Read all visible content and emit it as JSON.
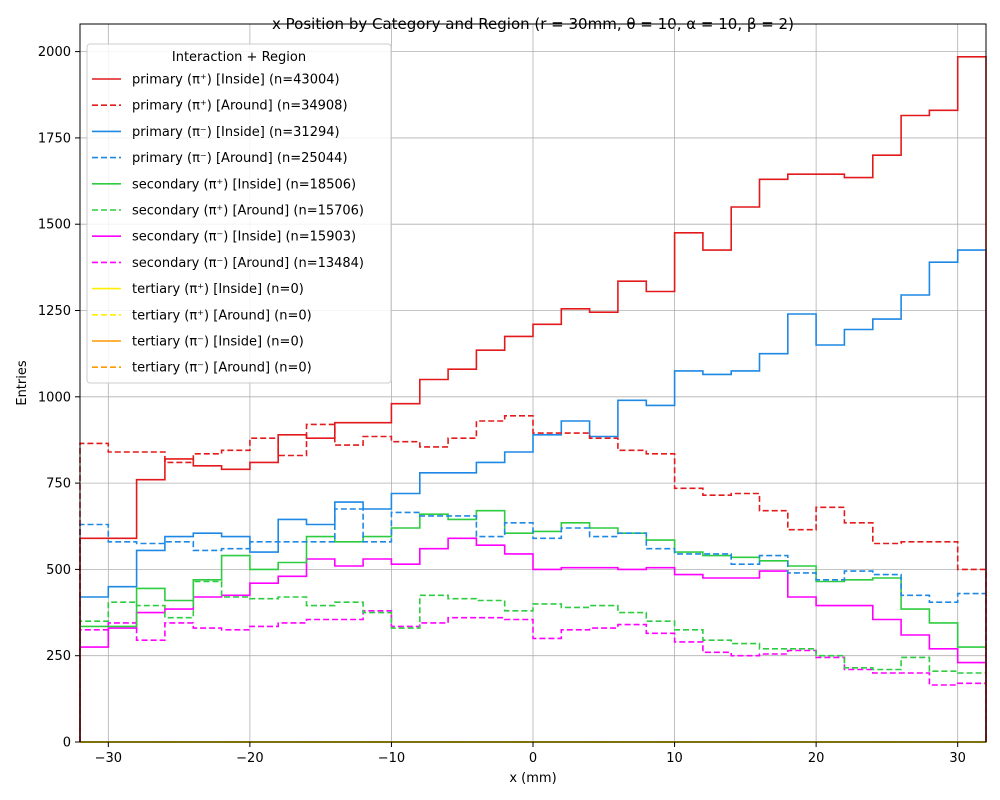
{
  "chart_data": {
    "type": "line",
    "title": "x Position by Category and Region (r = 30mm, θ = 10, α = 10, β = 2)",
    "xlabel": "x (mm)",
    "ylabel": "Entries",
    "xlim": [
      -32,
      32
    ],
    "ylim": [
      0,
      2080
    ],
    "xticks": [
      -30,
      -20,
      -10,
      0,
      10,
      20,
      30
    ],
    "xtick_labels": [
      "−30",
      "−20",
      "−10",
      "0",
      "10",
      "20",
      "30"
    ],
    "yticks": [
      0,
      250,
      500,
      750,
      1000,
      1250,
      1500,
      1750,
      2000
    ],
    "grid": true,
    "step": true,
    "bin_edges": [
      -32,
      -30,
      -28,
      -26,
      -24,
      -22,
      -20,
      -18,
      -16,
      -14,
      -12,
      -10,
      -8,
      -6,
      -4,
      -2,
      0,
      2,
      4,
      6,
      8,
      10,
      12,
      14,
      16,
      18,
      20,
      22,
      24,
      26,
      28,
      30,
      32
    ],
    "legend": {
      "title": "Interaction + Region",
      "placement": "top-left"
    },
    "series": [
      {
        "name": "primary (π⁺) [Inside] (n=43004)",
        "color": "#e31a1c",
        "dash": "solid",
        "values": [
          590,
          590,
          760,
          820,
          800,
          790,
          810,
          890,
          880,
          925,
          925,
          980,
          1050,
          1080,
          1135,
          1175,
          1210,
          1255,
          1245,
          1335,
          1305,
          1475,
          1425,
          1550,
          1630,
          1645,
          1645,
          1635,
          1700,
          1815,
          1830,
          1985
        ]
      },
      {
        "name": "primary (π⁺) [Around] (n=34908)",
        "color": "#e31a1c",
        "dash": "dashed",
        "values": [
          865,
          840,
          840,
          810,
          835,
          845,
          880,
          830,
          920,
          860,
          885,
          870,
          855,
          880,
          930,
          945,
          895,
          895,
          880,
          845,
          835,
          735,
          715,
          720,
          670,
          615,
          680,
          635,
          575,
          580,
          580,
          500
        ]
      },
      {
        "name": "primary (π⁻) [Inside] (n=31294)",
        "color": "#1e88e5",
        "dash": "solid",
        "values": [
          420,
          450,
          555,
          595,
          605,
          595,
          550,
          645,
          630,
          695,
          675,
          720,
          780,
          780,
          810,
          840,
          890,
          930,
          885,
          990,
          975,
          1075,
          1065,
          1075,
          1125,
          1240,
          1150,
          1195,
          1225,
          1295,
          1390,
          1425
        ]
      },
      {
        "name": "primary (π⁻) [Around] (n=25044)",
        "color": "#1e88e5",
        "dash": "dashed",
        "values": [
          630,
          580,
          575,
          580,
          555,
          560,
          580,
          580,
          580,
          675,
          580,
          665,
          655,
          655,
          595,
          635,
          590,
          620,
          595,
          605,
          560,
          545,
          545,
          515,
          540,
          490,
          470,
          495,
          485,
          425,
          405,
          430
        ]
      },
      {
        "name": "secondary (π⁺) [Inside] (n=18506)",
        "color": "#2ecc40",
        "dash": "solid",
        "values": [
          335,
          335,
          445,
          410,
          470,
          540,
          500,
          520,
          595,
          580,
          595,
          620,
          660,
          645,
          670,
          605,
          610,
          635,
          620,
          605,
          585,
          550,
          540,
          535,
          525,
          510,
          465,
          470,
          475,
          385,
          345,
          275
        ]
      },
      {
        "name": "secondary (π⁺) [Around] (n=15706)",
        "color": "#2ecc40",
        "dash": "dashed",
        "values": [
          350,
          405,
          395,
          360,
          465,
          420,
          415,
          420,
          395,
          405,
          375,
          330,
          425,
          415,
          410,
          380,
          400,
          390,
          395,
          375,
          350,
          325,
          295,
          285,
          270,
          270,
          250,
          215,
          210,
          245,
          205,
          200
        ]
      },
      {
        "name": "secondary (π⁻) [Inside] (n=15903)",
        "color": "#ff00ff",
        "dash": "solid",
        "values": [
          275,
          330,
          375,
          385,
          420,
          425,
          460,
          480,
          530,
          510,
          530,
          515,
          560,
          590,
          570,
          545,
          500,
          505,
          505,
          500,
          505,
          485,
          475,
          475,
          495,
          420,
          395,
          395,
          355,
          310,
          270,
          230
        ]
      },
      {
        "name": "secondary (π⁻) [Around] (n=13484)",
        "color": "#ff00ff",
        "dash": "dashed",
        "values": [
          325,
          345,
          295,
          345,
          330,
          325,
          335,
          345,
          355,
          355,
          380,
          335,
          345,
          360,
          360,
          355,
          300,
          325,
          330,
          340,
          315,
          290,
          260,
          250,
          255,
          265,
          245,
          210,
          200,
          200,
          165,
          170
        ]
      },
      {
        "name": "tertiary (π⁺) [Inside] (n=0)",
        "color": "#ffee00",
        "dash": "solid",
        "values": [
          0,
          0,
          0,
          0,
          0,
          0,
          0,
          0,
          0,
          0,
          0,
          0,
          0,
          0,
          0,
          0,
          0,
          0,
          0,
          0,
          0,
          0,
          0,
          0,
          0,
          0,
          0,
          0,
          0,
          0,
          0,
          0
        ]
      },
      {
        "name": "tertiary (π⁺) [Around] (n=0)",
        "color": "#ffee00",
        "dash": "dashed",
        "values": [
          0,
          0,
          0,
          0,
          0,
          0,
          0,
          0,
          0,
          0,
          0,
          0,
          0,
          0,
          0,
          0,
          0,
          0,
          0,
          0,
          0,
          0,
          0,
          0,
          0,
          0,
          0,
          0,
          0,
          0,
          0,
          0
        ]
      },
      {
        "name": "tertiary (π⁻) [Inside] (n=0)",
        "color": "#ff9900",
        "dash": "solid",
        "values": [
          0,
          0,
          0,
          0,
          0,
          0,
          0,
          0,
          0,
          0,
          0,
          0,
          0,
          0,
          0,
          0,
          0,
          0,
          0,
          0,
          0,
          0,
          0,
          0,
          0,
          0,
          0,
          0,
          0,
          0,
          0,
          0
        ]
      },
      {
        "name": "tertiary (π⁻) [Around] (n=0)",
        "color": "#ff9900",
        "dash": "dashed",
        "values": [
          0,
          0,
          0,
          0,
          0,
          0,
          0,
          0,
          0,
          0,
          0,
          0,
          0,
          0,
          0,
          0,
          0,
          0,
          0,
          0,
          0,
          0,
          0,
          0,
          0,
          0,
          0,
          0,
          0,
          0,
          0,
          0
        ]
      }
    ]
  }
}
